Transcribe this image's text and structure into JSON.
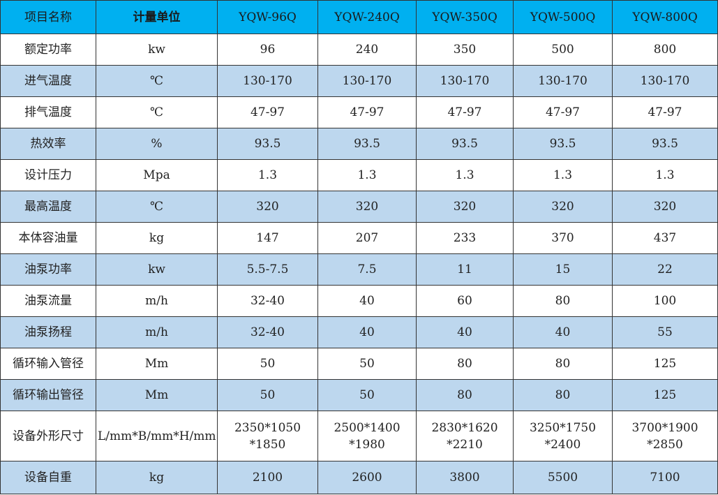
{
  "table": {
    "header": [
      "项目名称",
      "计量单位",
      "YQW-96Q",
      "YQW-240Q",
      "YQW-350Q",
      "YQW-500Q",
      "YQW-800Q"
    ],
    "rows": [
      [
        "额定功率",
        "kw",
        "96",
        "240",
        "350",
        "500",
        "800"
      ],
      [
        "进气温度",
        "℃",
        "130-170",
        "130-170",
        "130-170",
        "130-170",
        "130-170"
      ],
      [
        "排气温度",
        "℃",
        "47-97",
        "47-97",
        "47-97",
        "47-97",
        "47-97"
      ],
      [
        "热效率",
        "%",
        "93.5",
        "93.5",
        "93.5",
        "93.5",
        "93.5"
      ],
      [
        "设计压力",
        "Mpa",
        "1.3",
        "1.3",
        "1.3",
        "1.3",
        "1.3"
      ],
      [
        "最高温度",
        "℃",
        "320",
        "320",
        "320",
        "320",
        "320"
      ],
      [
        "本体容油量",
        "kg",
        "147",
        "207",
        "233",
        "370",
        "437"
      ],
      [
        "油泵功率",
        "kw",
        "5.5-7.5",
        "7.5",
        "11",
        "15",
        "22"
      ],
      [
        "油泵流量",
        "m/h",
        "32-40",
        "40",
        "60",
        "80",
        "100"
      ],
      [
        "油泵扬程",
        "m/h",
        "32-40",
        "40",
        "40",
        "40",
        "55"
      ],
      [
        "循环输入管径",
        "Mm",
        "50",
        "50",
        "80",
        "80",
        "125"
      ],
      [
        "循环输出管径",
        "Mm",
        "50",
        "50",
        "80",
        "80",
        "125"
      ],
      [
        "设备外形尺寸",
        "L/mm*B/mm*H/mm",
        "2350*1050\n*1850",
        "2500*1400\n*1980",
        "2830*1620\n*2210",
        "3250*1750\n*2400",
        "3700*1900\n*2850"
      ],
      [
        "设备自重",
        "kg",
        "2100",
        "2600",
        "3800",
        "5500",
        "7100"
      ]
    ]
  }
}
